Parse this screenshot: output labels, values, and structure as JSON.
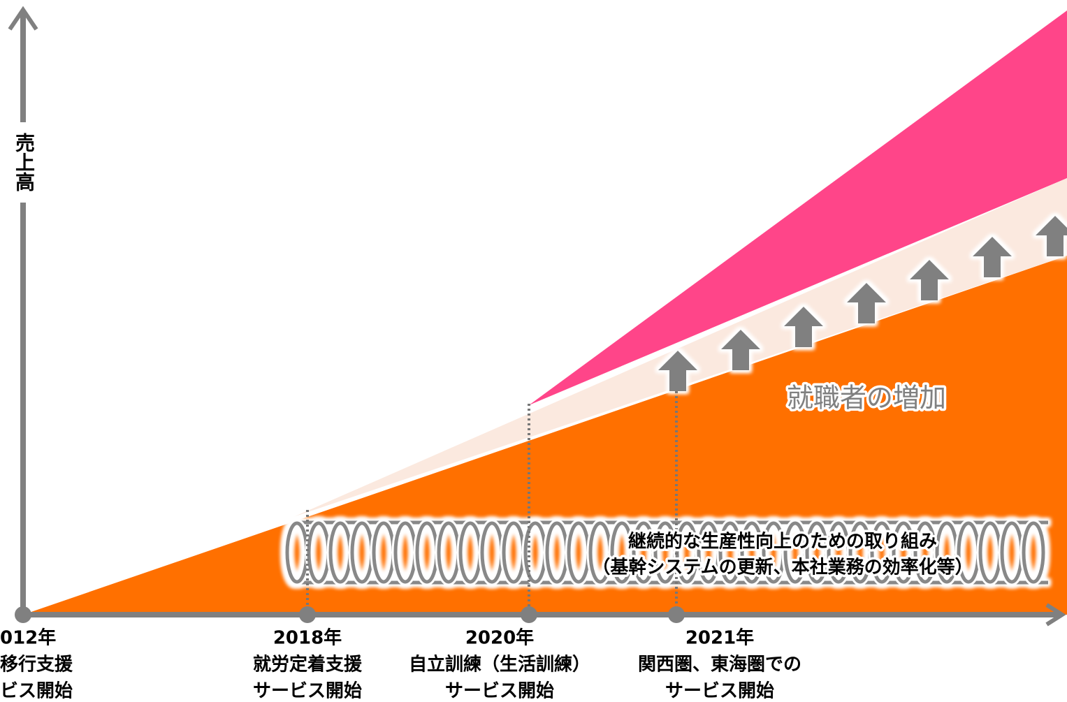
{
  "y_axis_label": "売上高",
  "growth_label": "就職者の増加",
  "initiative": {
    "lines": [
      "継続的な生産性向上のための取り組み",
      "（基幹システムの更新、本社業務の効率化等）"
    ]
  },
  "milestones": [
    {
      "year": "012年",
      "lines": [
        "移行支援",
        "ビス開始"
      ]
    },
    {
      "year": "2018年",
      "lines": [
        "就労定着支援",
        "サービス開始"
      ]
    },
    {
      "year": "2020年",
      "lines": [
        "自立訓練（生活訓練）",
        "サービス開始"
      ]
    },
    {
      "year": "2021年",
      "lines": [
        "関西圏、東海圏での",
        "サービス開始"
      ]
    }
  ]
}
